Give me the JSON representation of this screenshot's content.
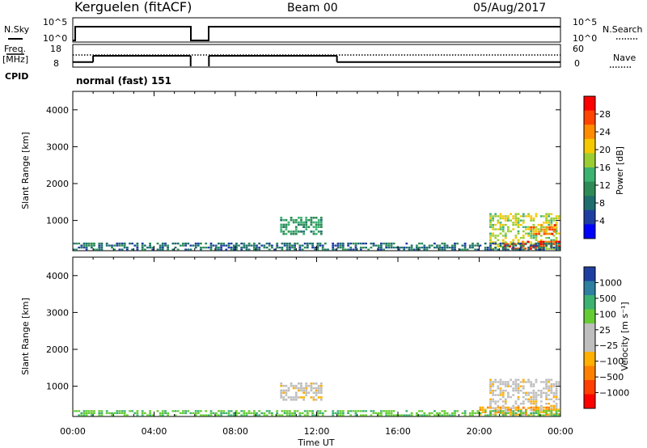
{
  "header": {
    "station": "Kerguelen (fitACF)",
    "beam": "Beam 00",
    "date": "05/Aug/2017"
  },
  "top_panels": {
    "nsky_label": "N.Sky",
    "nsky_ticks": [
      "10^5",
      "10^0"
    ],
    "nsearch_label": "N.Search",
    "nsearch_ticks": [
      "10^5",
      "10^0"
    ],
    "freq_label_1": "Freq.",
    "freq_label_2": "[MHz]",
    "freq_ticks": [
      "18",
      "8"
    ],
    "nave_label": "Nave",
    "nave_ticks": [
      "60",
      "0"
    ],
    "cpid_label": "CPID",
    "cpid_text": "normal (fast) 151"
  },
  "power_panel": {
    "ylabel": "Slant Range [km]",
    "yticks": [
      "4000",
      "3000",
      "2000",
      "1000"
    ],
    "colorbar_label": "Power [dB]",
    "colorbar_ticks": [
      "28",
      "24",
      "20",
      "16",
      "12",
      "8",
      "4"
    ],
    "colorbar_colors": [
      "#ff0000",
      "#ff4500",
      "#ff8c00",
      "#f5c800",
      "#9acd32",
      "#3cb371",
      "#2e8b57",
      "#1e6e6e",
      "#1f3fa0",
      "#0000ff"
    ]
  },
  "velocity_panel": {
    "ylabel": "Slant Range [km]",
    "yticks": [
      "4000",
      "3000",
      "2000",
      "1000"
    ],
    "colorbar_label": "Velocity [m s⁻¹]",
    "colorbar_ticks": [
      "1000",
      "500",
      "100",
      "25",
      "−25",
      "−100",
      "−500",
      "−1000"
    ],
    "colorbar_colors": [
      "#1f3fa0",
      "#2f7fa0",
      "#3cb371",
      "#66cc33",
      "#bebebe",
      "#bebebe",
      "#ffb000",
      "#ff8000",
      "#ff4000",
      "#ff0000"
    ]
  },
  "xaxis": {
    "ticks": [
      "00:00",
      "04:00",
      "08:00",
      "12:00",
      "16:00",
      "20:00",
      "00:00"
    ],
    "label": "Time UT"
  },
  "chart_data": {
    "type": "heatmap",
    "x_range_hours": [
      0,
      24
    ],
    "y_range_km": [
      180,
      4500
    ],
    "data_gap_hours": [
      5.8,
      6.7
    ],
    "nsky_level": "~10^3 (steady), drop during gap",
    "freq_mhz_segments": [
      {
        "start_h": 0,
        "end_h": 1.0,
        "freq_mhz": 10
      },
      {
        "start_h": 1.0,
        "end_h": 5.8,
        "freq_mhz": 13
      },
      {
        "start_h": 6.7,
        "end_h": 13.0,
        "freq_mhz": 13
      },
      {
        "start_h": 13.0,
        "end_h": 24,
        "freq_mhz": 10
      }
    ],
    "nave_level": 27,
    "power_patches_db": [
      {
        "t_start_h": 10.2,
        "t_end_h": 12.3,
        "r_min_km": 600,
        "r_max_km": 1100,
        "power_db": 12
      },
      {
        "t_start_h": 20.5,
        "t_end_h": 24.0,
        "r_min_km": 200,
        "r_max_km": 1200,
        "power_db": 18
      },
      {
        "t_start_h": 21.2,
        "t_end_h": 24.0,
        "r_min_km": 200,
        "r_max_km": 450,
        "power_db": 28
      },
      {
        "t_start_h": 22.5,
        "t_end_h": 23.8,
        "r_min_km": 600,
        "r_max_km": 900,
        "power_db": 26
      },
      {
        "t_start_h": 0.0,
        "t_end_h": 24.0,
        "r_min_km": 180,
        "r_max_km": 400,
        "power_db": 8
      }
    ],
    "velocity_patches_ms": [
      {
        "t_start_h": 10.2,
        "t_end_h": 12.3,
        "r_min_km": 600,
        "r_max_km": 1100,
        "velocity_ms": 0
      },
      {
        "t_start_h": 20.5,
        "t_end_h": 24.0,
        "r_min_km": 200,
        "r_max_km": 1200,
        "velocity_ms": 0
      },
      {
        "t_start_h": 20.0,
        "t_end_h": 24.0,
        "r_min_km": 200,
        "r_max_km": 450,
        "velocity_ms": -150
      },
      {
        "t_start_h": 0.0,
        "t_end_h": 24.0,
        "r_min_km": 180,
        "r_max_km": 350,
        "velocity_ms": 80
      }
    ]
  }
}
